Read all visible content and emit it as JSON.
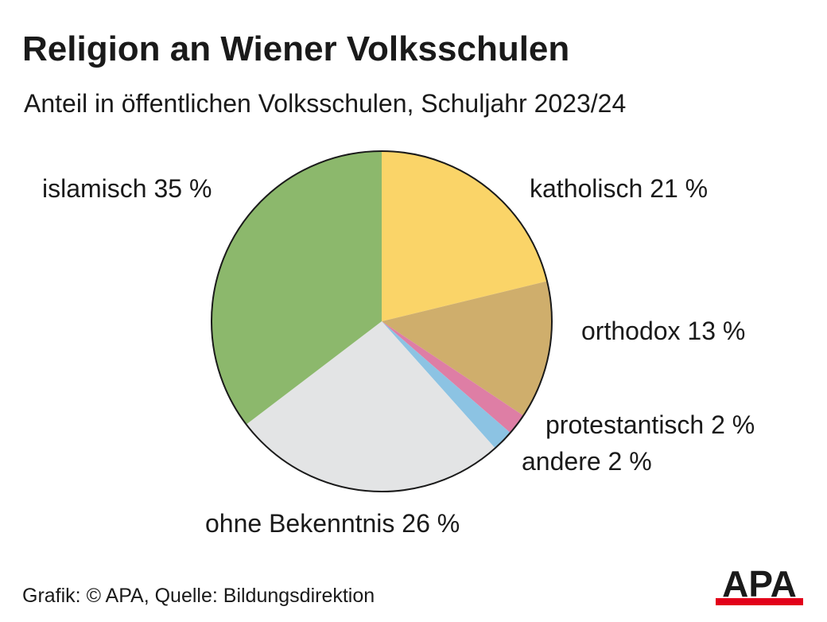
{
  "header": {
    "title": "Religion an Wiener Volksschulen",
    "subtitle": "Anteil in öffentlichen Volksschulen, Schuljahr 2023/24"
  },
  "chart_data": {
    "type": "pie",
    "title": "Religion an Wiener Volksschulen",
    "subtitle": "Anteil in öffentlichen Volksschulen, Schuljahr 2023/24",
    "unit": "%",
    "start": "12 o'clock",
    "direction": "clockwise",
    "slices": [
      {
        "label": "katholisch 21 %",
        "name": "katholisch",
        "value": 21,
        "color": "#fad468"
      },
      {
        "label": "orthodox 13 %",
        "name": "orthodox",
        "value": 13,
        "color": "#cfae6c"
      },
      {
        "label": "protestantisch 2 %",
        "name": "protestantisch",
        "value": 2,
        "color": "#de7ea5"
      },
      {
        "label": "andere 2 %",
        "name": "andere",
        "value": 2,
        "color": "#8cc3e3"
      },
      {
        "label": "ohne Bekenntnis 26 %",
        "name": "ohne Bekenntnis",
        "value": 26,
        "color": "#e3e4e5"
      },
      {
        "label": "islamisch 35 %",
        "name": "islamisch",
        "value": 35,
        "color": "#8cb86c"
      }
    ]
  },
  "footer": {
    "credit": "Grafik: © APA, Quelle: Bildungsdirektion"
  },
  "logo": {
    "text": "APA",
    "color": "#1a1a1a",
    "accent": "#e2001a"
  }
}
